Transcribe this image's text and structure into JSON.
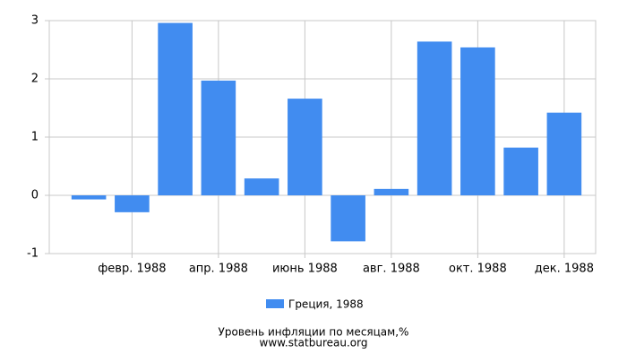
{
  "chart_data": {
    "type": "bar",
    "title": "Уровень инфляции по месяцам,%",
    "subtitle": "www.statbureau.org",
    "categories": [
      null,
      "февр. 1988",
      null,
      "апр. 1988",
      null,
      "июнь 1988",
      null,
      "авг. 1988",
      null,
      "окт. 1988",
      null,
      "дек. 1988"
    ],
    "series": [
      {
        "name": "Греция, 1988",
        "color": "#418cf0",
        "values": [
          -0.07,
          -0.29,
          2.96,
          1.97,
          0.29,
          1.66,
          -0.79,
          0.11,
          2.64,
          2.54,
          0.82,
          1.42
        ]
      }
    ],
    "ylim": [
      -1,
      3
    ],
    "yticks": [
      -1,
      0,
      1,
      2,
      3
    ],
    "grid": true
  }
}
